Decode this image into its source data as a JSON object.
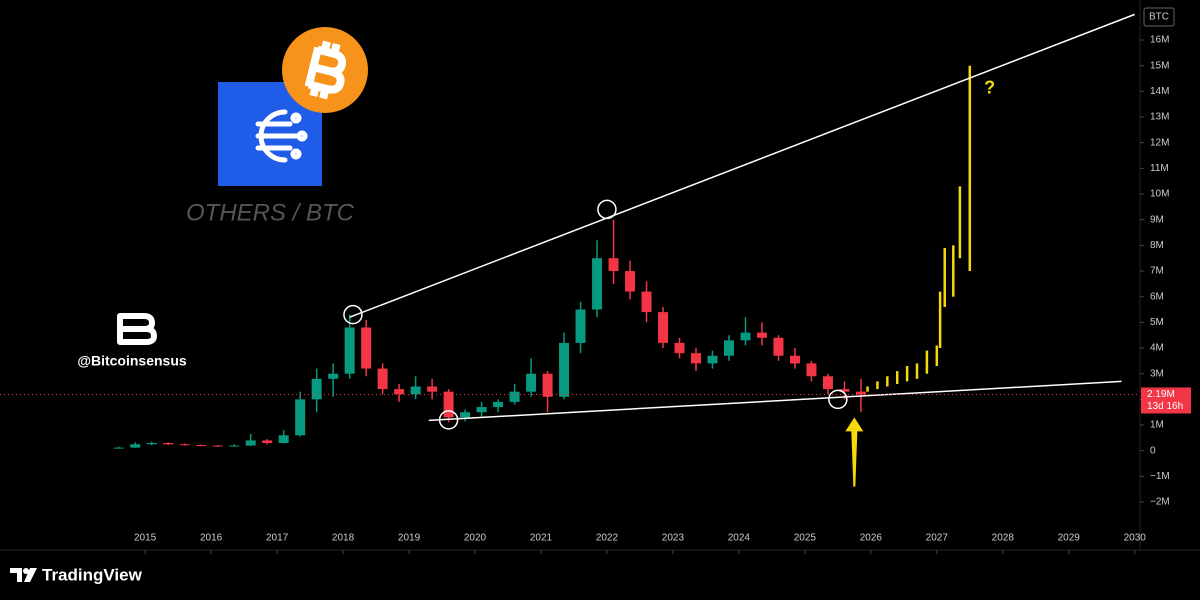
{
  "chart_data": {
    "type": "candlestick",
    "title": "OTHERS / BTC",
    "symbol": "BTC",
    "handle": "@Bitcoinsensus",
    "brand": "TradingView",
    "x": [
      2014.6,
      2014.85,
      2015.1,
      2015.35,
      2015.6,
      2015.85,
      2016.1,
      2016.35,
      2016.6,
      2016.85,
      2017.1,
      2017.35,
      2017.6,
      2017.85,
      2018.1,
      2018.35,
      2018.6,
      2018.85,
      2019.1,
      2019.35,
      2019.6,
      2019.85,
      2020.1,
      2020.35,
      2020.6,
      2020.85,
      2021.1,
      2021.35,
      2021.6,
      2021.85,
      2022.1,
      2022.35,
      2022.6,
      2022.85,
      2023.1,
      2023.35,
      2023.6,
      2023.85,
      2024.1,
      2024.35,
      2024.6,
      2024.85,
      2025.1,
      2025.35,
      2025.6,
      2025.85
    ],
    "open": [
      100000,
      120000,
      250000,
      300000,
      250000,
      220000,
      200000,
      180000,
      200000,
      400000,
      300000,
      600000,
      2000000,
      2800000,
      3000000,
      4800000,
      3200000,
      2400000,
      2200000,
      2500000,
      2300000,
      1300000,
      1500000,
      1700000,
      1900000,
      2300000,
      3000000,
      2100000,
      4200000,
      5500000,
      7500000,
      7000000,
      6200000,
      5400000,
      4200000,
      3800000,
      3400000,
      3700000,
      4300000,
      4600000,
      4400000,
      3700000,
      3400000,
      2900000,
      2400000,
      2300000
    ],
    "high": [
      150000,
      320000,
      350000,
      320000,
      280000,
      240000,
      220000,
      250000,
      650000,
      450000,
      800000,
      2300000,
      3200000,
      3400000,
      5300000,
      5100000,
      3400000,
      2600000,
      2900000,
      2800000,
      2400000,
      1600000,
      1900000,
      2000000,
      2600000,
      3600000,
      3100000,
      4600000,
      5800000,
      8200000,
      9000000,
      7400000,
      6600000,
      5600000,
      4400000,
      4000000,
      3900000,
      4500000,
      5200000,
      5000000,
      4500000,
      4000000,
      3500000,
      3000000,
      2700000,
      2800000
    ],
    "low": [
      80000,
      110000,
      220000,
      220000,
      200000,
      170000,
      150000,
      160000,
      190000,
      250000,
      280000,
      550000,
      1500000,
      2100000,
      2800000,
      2900000,
      2200000,
      1900000,
      2000000,
      2000000,
      1100000,
      1150000,
      1300000,
      1500000,
      1800000,
      2100000,
      1500000,
      2000000,
      3800000,
      5200000,
      6500000,
      5900000,
      5000000,
      4000000,
      3600000,
      3100000,
      3200000,
      3500000,
      4100000,
      4100000,
      3500000,
      3200000,
      2700000,
      2200000,
      2000000,
      1500000
    ],
    "close": [
      120000,
      250000,
      300000,
      250000,
      220000,
      200000,
      180000,
      200000,
      400000,
      300000,
      600000,
      2000000,
      2800000,
      3000000,
      4800000,
      3200000,
      2400000,
      2200000,
      2500000,
      2300000,
      1300000,
      1500000,
      1700000,
      1900000,
      2300000,
      3000000,
      2100000,
      4200000,
      5500000,
      7500000,
      7000000,
      6200000,
      5400000,
      4200000,
      3800000,
      3400000,
      3700000,
      4300000,
      4600000,
      4400000,
      3700000,
      3400000,
      2900000,
      2400000,
      2300000,
      2190000
    ],
    "up_color": "#089981",
    "down_color": "#f23645",
    "projection": {
      "color": "#f5d90a",
      "x": [
        2025.95,
        2026.1,
        2026.25,
        2026.4,
        2026.55,
        2026.7,
        2026.85,
        2027.0,
        2027.05,
        2027.12,
        2027.25,
        2027.35,
        2027.5
      ],
      "low": [
        2300000,
        2400000,
        2500000,
        2600000,
        2700000,
        2800000,
        3000000,
        3300000,
        4000000,
        5600000,
        6000000,
        7500000,
        7000000
      ],
      "high": [
        2500000,
        2700000,
        2900000,
        3100000,
        3300000,
        3400000,
        3900000,
        4100000,
        6200000,
        7900000,
        8000000,
        10300000,
        15000000
      ]
    },
    "trendlines": [
      {
        "x": [
          2018.1,
          2030.0
        ],
        "y": [
          5200000,
          17000000
        ]
      },
      {
        "x": [
          2019.3,
          2029.8
        ],
        "y": [
          1180000,
          2700000
        ]
      }
    ],
    "highlight_points": {
      "x": [
        2018.15,
        2019.6,
        2022.0,
        2025.5
      ],
      "y": [
        5300000,
        1200000,
        9400000,
        2000000
      ]
    },
    "arrow": {
      "x": 2025.75,
      "y_from": -1400000,
      "y_to": 1300000,
      "color": "#f5d90a"
    },
    "question": {
      "text": "?",
      "x": 2027.8,
      "y": 14100000
    },
    "last_price": {
      "value": 2190000,
      "label": "2.19M",
      "countdown": "13d 16h"
    },
    "xlim": [
      2012.8,
      2030.08
    ],
    "xticks": [
      2015,
      2016,
      2017,
      2018,
      2019,
      2020,
      2021,
      2022,
      2023,
      2024,
      2025,
      2026,
      2027,
      2028,
      2029,
      2030
    ],
    "ylim": [
      -3090000,
      17560000
    ],
    "yticks": [
      {
        "value": 16000000,
        "label": "16M"
      },
      {
        "value": 15000000,
        "label": "15M"
      },
      {
        "value": 14000000,
        "label": "14M"
      },
      {
        "value": 13000000,
        "label": "13M"
      },
      {
        "value": 12000000,
        "label": "12M"
      },
      {
        "value": 11000000,
        "label": "11M"
      },
      {
        "value": 10000000,
        "label": "10M"
      },
      {
        "value": 9000000,
        "label": "9M"
      },
      {
        "value": 8000000,
        "label": "8M"
      },
      {
        "value": 7000000,
        "label": "7M"
      },
      {
        "value": 6000000,
        "label": "6M"
      },
      {
        "value": 5000000,
        "label": "5M"
      },
      {
        "value": 4000000,
        "label": "4M"
      },
      {
        "value": 3000000,
        "label": "3M"
      },
      {
        "value": 2000000,
        "label": "2M"
      },
      {
        "value": 1000000,
        "label": "1M"
      },
      0,
      {
        "value": -1000000,
        "label": "−1M"
      },
      {
        "value": -2000000,
        "label": "−2M"
      }
    ]
  }
}
